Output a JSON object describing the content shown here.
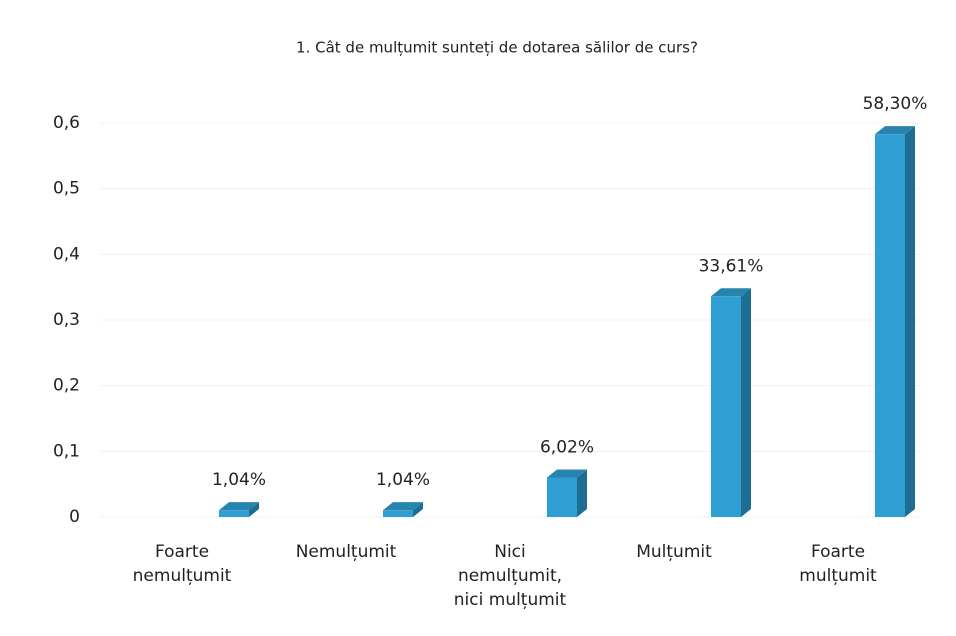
{
  "chart_data": {
    "type": "bar3d",
    "title": "1. Cât de mulțumit sunteți de dotarea sălilor de curs?",
    "categories": [
      "Foarte nemulțumit",
      "Nemulțumit",
      "Nici nemulțumit, nici mulțumit",
      "Mulțumit",
      "Foarte mulțumit"
    ],
    "values": [
      0.0104,
      0.0104,
      0.0602,
      0.3361,
      0.583
    ],
    "value_labels": [
      "1,04%",
      "1,04%",
      "6,02%",
      "33,61%",
      "58,30%"
    ],
    "color": "#2f9fd3",
    "ylim": [
      0,
      0.6
    ],
    "yticks": [
      0,
      {
        "value": 0.1,
        "label": "0,1"
      },
      {
        "value": 0.2,
        "label": "0,2"
      },
      {
        "value": 0.3,
        "label": "0,3"
      },
      {
        "value": 0.4,
        "label": "0,4"
      },
      {
        "value": 0.5,
        "label": "0,5"
      },
      {
        "value": 0.6,
        "label": "0,6"
      }
    ],
    "grid": true
  }
}
